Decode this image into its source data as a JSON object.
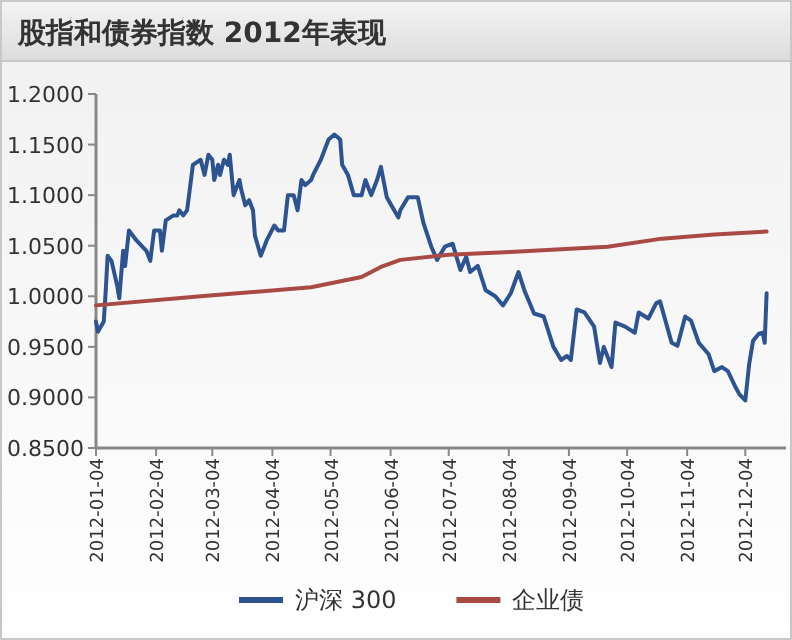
{
  "chart_data": {
    "type": "line",
    "title": "股指和债券指数 2012年表现",
    "xlim": [
      "2012-01-04",
      "2012-12-25"
    ],
    "xticks": [
      {
        "value": "2012-01-04",
        "label": "2012-01-04"
      },
      {
        "value": "2012-02-04",
        "label": "2012-02-04"
      },
      {
        "value": "2012-03-04",
        "label": "2012-03-04"
      },
      {
        "value": "2012-04-04",
        "label": "2012-04-04"
      },
      {
        "value": "2012-05-04",
        "label": "2012-05-04"
      },
      {
        "value": "2012-06-04",
        "label": "2012-06-04"
      },
      {
        "value": "2012-07-04",
        "label": "2012-07-04"
      },
      {
        "value": "2012-08-04",
        "label": "2012-08-04"
      },
      {
        "value": "2012-09-04",
        "label": "2012-09-04"
      },
      {
        "value": "2012-10-04",
        "label": "2012-10-04"
      },
      {
        "value": "2012-11-04",
        "label": "2012-11-04"
      },
      {
        "value": "2012-12-04",
        "label": "2012-12-04"
      }
    ],
    "ylim": [
      0.85,
      1.2
    ],
    "yticks": [
      {
        "value": 0.85,
        "label": "0.8500"
      },
      {
        "value": 0.9,
        "label": "0.9000"
      },
      {
        "value": 0.95,
        "label": "0.9500"
      },
      {
        "value": 1.0,
        "label": "1.0000"
      },
      {
        "value": 1.05,
        "label": "1.0500"
      },
      {
        "value": 1.1,
        "label": "1.1000"
      },
      {
        "value": 1.15,
        "label": "1.1500"
      },
      {
        "value": 1.2,
        "label": "1.2000"
      }
    ],
    "grid": false,
    "legend": "bottom",
    "marker": "none",
    "line_style": "solid",
    "series": [
      {
        "name": "沪深 300",
        "color": "#2d5491",
        "x": [
          "2012-01-04",
          "2012-01-05",
          "2012-01-08",
          "2012-01-09",
          "2012-01-10",
          "2012-01-12",
          "2012-01-15",
          "2012-01-16",
          "2012-01-18",
          "2012-01-19",
          "2012-01-21",
          "2012-01-25",
          "2012-01-30",
          "2012-02-01",
          "2012-02-03",
          "2012-02-06",
          "2012-02-07",
          "2012-02-09",
          "2012-02-13",
          "2012-02-15",
          "2012-02-16",
          "2012-02-18",
          "2012-02-20",
          "2012-02-23",
          "2012-02-27",
          "2012-02-29",
          "2012-03-02",
          "2012-03-04",
          "2012-03-05",
          "2012-03-07",
          "2012-03-08",
          "2012-03-10",
          "2012-03-12",
          "2012-03-13",
          "2012-03-15",
          "2012-03-18",
          "2012-03-19",
          "2012-03-21",
          "2012-03-23",
          "2012-03-25",
          "2012-03-26",
          "2012-03-29",
          "2012-04-01",
          "2012-04-05",
          "2012-04-07",
          "2012-04-10",
          "2012-04-12",
          "2012-04-15",
          "2012-04-17",
          "2012-04-19",
          "2012-04-21",
          "2012-04-24",
          "2012-04-25",
          "2012-04-29",
          "2012-05-03",
          "2012-05-06",
          "2012-05-09",
          "2012-05-10",
          "2012-05-13",
          "2012-05-16",
          "2012-05-20",
          "2012-05-22",
          "2012-05-25",
          "2012-05-28",
          "2012-05-30",
          "2012-06-02",
          "2012-06-08",
          "2012-06-09",
          "2012-06-13",
          "2012-06-18",
          "2012-06-21",
          "2012-06-25",
          "2012-06-28",
          "2012-07-02",
          "2012-07-06",
          "2012-07-10",
          "2012-07-13",
          "2012-07-15",
          "2012-07-19",
          "2012-07-23",
          "2012-07-28",
          "2012-08-01",
          "2012-08-05",
          "2012-08-09",
          "2012-08-12",
          "2012-08-17",
          "2012-08-22",
          "2012-08-27",
          "2012-08-31",
          "2012-09-03",
          "2012-09-05",
          "2012-09-08",
          "2012-09-12",
          "2012-09-17",
          "2012-09-20",
          "2012-09-22",
          "2012-09-26",
          "2012-09-28",
          "2012-10-03",
          "2012-10-08",
          "2012-10-10",
          "2012-10-15",
          "2012-10-19",
          "2012-10-21",
          "2012-10-27",
          "2012-10-30",
          "2012-11-03",
          "2012-11-06",
          "2012-11-10",
          "2012-11-15",
          "2012-11-18",
          "2012-11-22",
          "2012-11-25",
          "2012-11-29",
          "2012-12-01",
          "2012-12-04",
          "2012-12-06",
          "2012-12-08",
          "2012-12-11",
          "2012-12-13",
          "2012-12-14",
          "2012-12-15"
        ],
        "values": [
          0.975,
          0.965,
          0.975,
          1.005,
          1.04,
          1.035,
          1.01,
          0.998,
          1.045,
          1.03,
          1.065,
          1.055,
          1.045,
          1.035,
          1.065,
          1.065,
          1.045,
          1.075,
          1.08,
          1.08,
          1.085,
          1.08,
          1.085,
          1.13,
          1.135,
          1.12,
          1.14,
          1.135,
          1.115,
          1.13,
          1.12,
          1.135,
          1.13,
          1.14,
          1.1,
          1.115,
          1.105,
          1.09,
          1.095,
          1.085,
          1.06,
          1.04,
          1.055,
          1.07,
          1.065,
          1.065,
          1.1,
          1.1,
          1.085,
          1.115,
          1.11,
          1.115,
          1.12,
          1.135,
          1.155,
          1.16,
          1.155,
          1.13,
          1.12,
          1.1,
          1.1,
          1.115,
          1.1,
          1.115,
          1.128,
          1.098,
          1.078,
          1.085,
          1.098,
          1.098,
          1.072,
          1.049,
          1.036,
          1.049,
          1.052,
          1.026,
          1.039,
          1.024,
          1.03,
          1.006,
          1.0,
          0.991,
          1.003,
          1.024,
          1.006,
          0.983,
          0.98,
          0.95,
          0.937,
          0.941,
          0.937,
          0.987,
          0.984,
          0.97,
          0.934,
          0.95,
          0.93,
          0.974,
          0.97,
          0.964,
          0.984,
          0.978,
          0.993,
          0.995,
          0.954,
          0.951,
          0.98,
          0.976,
          0.954,
          0.943,
          0.926,
          0.93,
          0.926,
          0.91,
          0.903,
          0.897,
          0.933,
          0.956,
          0.963,
          0.964,
          0.954,
          1.003
        ]
      },
      {
        "name": "企业债",
        "color": "#a94a45",
        "x": [
          "2012-01-04",
          "2012-02-27",
          "2012-04-24",
          "2012-05-20",
          "2012-05-30",
          "2012-06-09",
          "2012-07-04",
          "2012-08-07",
          "2012-09-24",
          "2012-10-22",
          "2012-11-18",
          "2012-12-15"
        ],
        "values": [
          0.991,
          1.0,
          1.009,
          1.019,
          1.029,
          1.036,
          1.041,
          1.044,
          1.049,
          1.057,
          1.061,
          1.064
        ]
      }
    ]
  }
}
